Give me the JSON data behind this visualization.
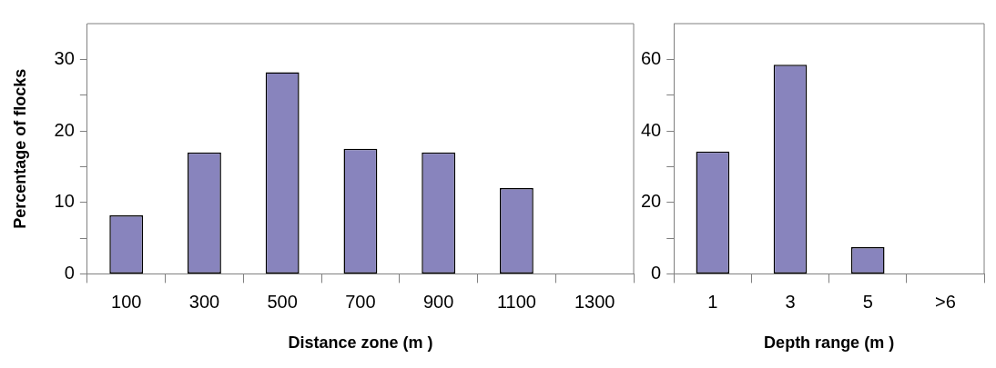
{
  "chart_data": [
    {
      "type": "bar",
      "xlabel": "Distance zone (m )",
      "ylabel": "Percentage of flocks",
      "categories": [
        "100",
        "300",
        "500",
        "700",
        "900",
        "1100",
        "1300"
      ],
      "values": [
        8.2,
        17,
        28.2,
        17.5,
        17,
        12,
        null
      ],
      "color": "#8884bd",
      "ylim": [
        0,
        35
      ],
      "yticks": [
        0,
        {
          "value": 5,
          "label": null
        },
        10,
        {
          "value": 15,
          "label": null
        },
        20,
        {
          "value": 25,
          "label": null
        },
        30
      ]
    },
    {
      "type": "bar",
      "xlabel": "Depth range (m )",
      "categories": [
        "1",
        "3",
        "5",
        ">6"
      ],
      "values": [
        34.2,
        58.5,
        7.5,
        null
      ],
      "color": "#8884bd",
      "ylim": [
        0,
        70
      ],
      "yticks": [
        0,
        {
          "value": 10,
          "label": null
        },
        20,
        {
          "value": 30,
          "label": null
        },
        40,
        {
          "value": 50,
          "label": null
        },
        60
      ]
    }
  ]
}
